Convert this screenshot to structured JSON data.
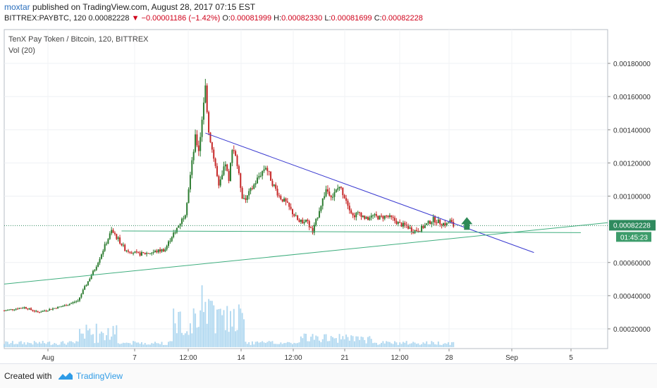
{
  "header": {
    "user": "moxtar",
    "published_text": "published on TradingView.com, August 28, 2017 07:15 EST",
    "symbol_line": "BITTREX:PAYBTC, 120",
    "last": "0.00082228",
    "change": "▼ −0.00001186 (−1.42%)",
    "open_label": "O:",
    "open": "0.00081999",
    "high_label": "H:",
    "high": "0.00082330",
    "low_label": "L:",
    "low": "0.00081699",
    "close_label": "C:",
    "close": "0.00082228"
  },
  "legend": {
    "title": "TenX Pay Token / Bitcoin, 120, BITTREX",
    "volume": "Vol (20)"
  },
  "footer": {
    "created_with": "Created with",
    "brand": "TradingView"
  },
  "colors": {
    "up": "#2e7d32",
    "down": "#c62828",
    "volume": "#a7d3ef",
    "resistance": "#3a3ad0",
    "support": "#3fae7e",
    "arrow": "#2e8a57",
    "price_tag": "#2f8a5e",
    "timer_tag": "#3d9c6b"
  },
  "chart_data": {
    "type": "candlestick",
    "y_ticks": [
      "0.00180000",
      "0.00160000",
      "0.00140000",
      "0.00120000",
      "0.00100000",
      "0.00060000",
      "0.00040000",
      "0.00020000"
    ],
    "y_tick_values": [
      0.0018,
      0.0016,
      0.0014,
      0.0012,
      0.001,
      0.0006,
      0.0004,
      0.0002
    ],
    "x_ticks": [
      "Aug",
      "7",
      "12:00",
      "14",
      "12:00",
      "21",
      "12:00",
      "28",
      "Sep",
      "5"
    ],
    "price_tag": "0.00082228",
    "timer_tag": "01:45:23",
    "price_path": [
      [
        0,
        0.00031
      ],
      [
        6,
        0.00033
      ],
      [
        10,
        0.0003
      ],
      [
        14,
        0.00032
      ],
      [
        18,
        0.00034
      ],
      [
        22,
        0.00037
      ],
      [
        24,
        0.00045
      ],
      [
        27,
        0.00056
      ],
      [
        30,
        0.0007
      ],
      [
        32,
        0.00079
      ],
      [
        34,
        0.00074
      ],
      [
        36,
        0.00068
      ],
      [
        40,
        0.00065
      ],
      [
        44,
        0.00066
      ],
      [
        48,
        0.00068
      ],
      [
        50,
        0.00076
      ],
      [
        52,
        0.00082
      ],
      [
        54,
        0.0009
      ],
      [
        55,
        0.00105
      ],
      [
        56,
        0.0012
      ],
      [
        57,
        0.00135
      ],
      [
        58,
        0.00128
      ],
      [
        59,
        0.00145
      ],
      [
        60,
        0.00165
      ],
      [
        61,
        0.0014
      ],
      [
        62,
        0.00128
      ],
      [
        63,
        0.00118
      ],
      [
        64,
        0.00105
      ],
      [
        65,
        0.00112
      ],
      [
        66,
        0.0012
      ],
      [
        67,
        0.00108
      ],
      [
        68,
        0.0013
      ],
      [
        69,
        0.00125
      ],
      [
        70,
        0.00112
      ],
      [
        71,
        0.001
      ],
      [
        72,
        0.00098
      ],
      [
        74,
        0.00105
      ],
      [
        76,
        0.00112
      ],
      [
        78,
        0.00118
      ],
      [
        80,
        0.00108
      ],
      [
        82,
        0.001
      ],
      [
        84,
        0.00096
      ],
      [
        86,
        0.0009
      ],
      [
        88,
        0.00084
      ],
      [
        90,
        0.00086
      ],
      [
        92,
        0.00078
      ],
      [
        94,
        0.00092
      ],
      [
        96,
        0.00104
      ],
      [
        98,
        0.001
      ],
      [
        100,
        0.00106
      ],
      [
        102,
        0.00098
      ],
      [
        104,
        0.00088
      ],
      [
        106,
        0.0009
      ],
      [
        108,
        0.00086
      ],
      [
        110,
        0.00088
      ],
      [
        112,
        0.00087
      ],
      [
        114,
        0.00088
      ],
      [
        116,
        0.00086
      ],
      [
        118,
        0.00083
      ],
      [
        120,
        0.00082
      ],
      [
        122,
        0.00079
      ],
      [
        124,
        0.0008
      ],
      [
        126,
        0.00083
      ],
      [
        128,
        0.00086
      ],
      [
        130,
        0.00084
      ],
      [
        132,
        0.00083
      ],
      [
        133,
        0.00085
      ],
      [
        134,
        0.00082
      ]
    ],
    "x_range": [
      0,
      180
    ],
    "resistance_line": [
      [
        60,
        0.00138
      ],
      [
        158,
        0.00066
      ]
    ],
    "support_line_flat": [
      [
        35,
        0.00079
      ],
      [
        172,
        0.00078
      ]
    ],
    "support_line_rising": [
      [
        0,
        0.00047
      ],
      [
        172,
        0.00084
      ]
    ]
  }
}
